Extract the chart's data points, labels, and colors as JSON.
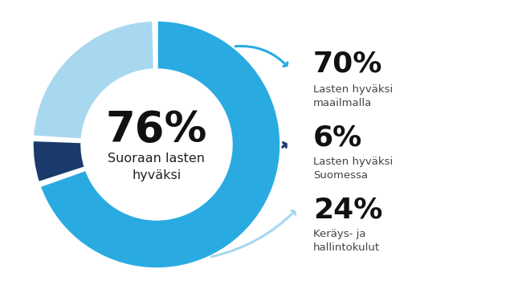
{
  "slices": [
    70,
    6,
    24
  ],
  "colors": [
    "#29abe2",
    "#1a3a6b",
    "#a8d8f0"
  ],
  "center_pct": "76%",
  "center_text": "Suoraan lasten\nhyväksi",
  "bg_color": "#ffffff",
  "labels": [
    {
      "pct": "70%",
      "line1": "Lasten hyväksi",
      "line2": "maailmalla",
      "arrow_color": "#29abe2"
    },
    {
      "pct": "6%",
      "line1": "Lasten hyväksi",
      "line2": "Suomessa",
      "arrow_color": "#1a3a6b"
    },
    {
      "pct": "24%",
      "line1": "Keräys- ja",
      "line2": "hallintokulut",
      "arrow_color": "#a8d8f0"
    }
  ]
}
